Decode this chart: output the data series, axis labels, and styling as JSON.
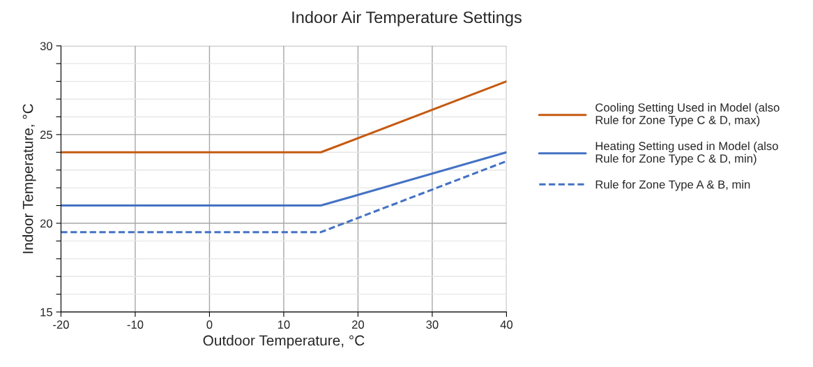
{
  "chart_data": {
    "type": "line",
    "title": "Indoor Air Temperature Settings",
    "xlabel": "Outdoor Temperature, °C",
    "ylabel": "Indoor Temperature, °C",
    "xlim": [
      -20,
      40
    ],
    "xticks": [
      -20,
      -10,
      0,
      10,
      20,
      30,
      40
    ],
    "ylim": [
      15,
      30
    ],
    "yticks": [
      15,
      {
        "value": 16,
        "label": null
      },
      {
        "value": 17,
        "label": null
      },
      {
        "value": 18,
        "label": null
      },
      {
        "value": 19,
        "label": null
      },
      20,
      {
        "value": 21,
        "label": null
      },
      {
        "value": 22,
        "label": null
      },
      {
        "value": 23,
        "label": null
      },
      {
        "value": 24,
        "label": null
      },
      25,
      {
        "value": 26,
        "label": null
      },
      {
        "value": 27,
        "label": null
      },
      {
        "value": 28,
        "label": null
      },
      {
        "value": 29,
        "label": null
      },
      30
    ],
    "grid": true,
    "legend": "right",
    "marker": "none",
    "series": [
      {
        "name": "Cooling Setting Used in Model (also\nRule for Zone Type C & D, max)",
        "color": "#c55a11",
        "x": [
          -20,
          15,
          40
        ],
        "values": [
          24,
          24,
          28
        ],
        "line_style": "solid"
      },
      {
        "name": "Heating Setting used in Model (also\nRule for Zone Type C & D, min)",
        "color": "#4472c4",
        "x": [
          -20,
          15,
          40
        ],
        "values": [
          21,
          21,
          24
        ],
        "line_style": "solid"
      },
      {
        "name": "Rule for Zone Type A & B, min",
        "color": "#4472c4",
        "x": [
          -20,
          15,
          40
        ],
        "values": [
          19.5,
          19.5,
          23.5
        ],
        "line_style": "dashed"
      }
    ]
  }
}
